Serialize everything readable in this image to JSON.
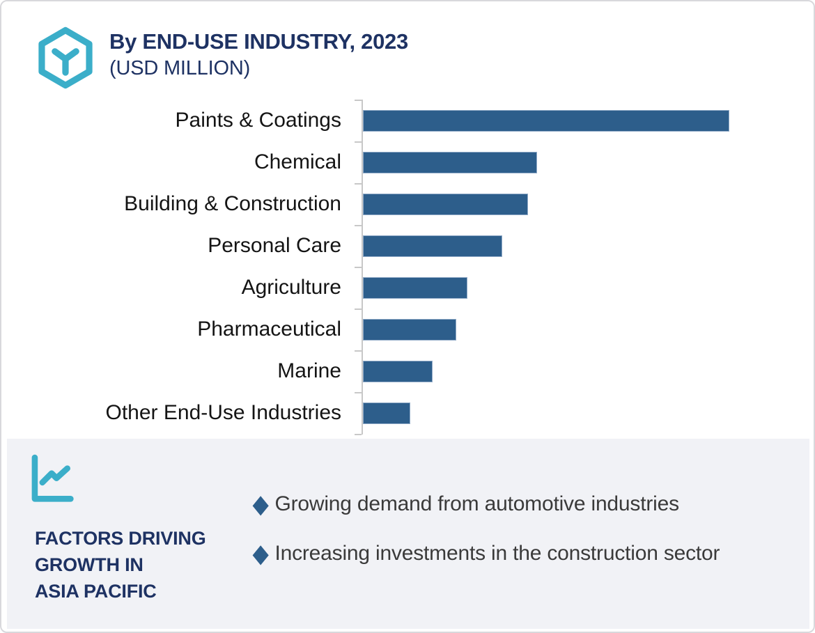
{
  "page": {
    "background": "#FFFFFF",
    "border_color": "#D8D8DC"
  },
  "header": {
    "icon": "hexagon-molecule-icon",
    "icon_color": "#3BAEC9",
    "title": "By END-USE INDUSTRY, 2023",
    "subtitle": "(USD MILLION)",
    "title_color": "#1E3263"
  },
  "chart_data": {
    "type": "bar",
    "orientation": "horizontal",
    "title": "By END-USE INDUSTRY, 2023",
    "units": "USD MILLION",
    "categories": [
      "Paints & Coatings",
      "Chemical",
      "Building & Construction",
      "Personal Care",
      "Agriculture",
      "Pharmaceutical",
      "Marine",
      "Other End-Use Industries"
    ],
    "values": [
      100,
      47.5,
      45,
      38,
      28.5,
      25.5,
      19,
      13
    ],
    "value_scale": "relative bar length, % of longest bar (no numeric axis labels shown in chart)",
    "bar_color": "#2D5E8B",
    "axis_color": "#C8C8C8",
    "grid": false,
    "legend": false
  },
  "footer": {
    "icon": "line-chart-icon",
    "icon_color": "#3BAEC9",
    "panel_bg": "#F1F2F6",
    "heading": "FACTORS DRIVING GROWTH IN ASIA PACIFIC",
    "heading_lines": [
      "FACTORS DRIVING",
      "GROWTH IN",
      "ASIA PACIFIC"
    ],
    "heading_color": "#1E3263",
    "bullet_icon": "diamond-bullet-icon",
    "bullet_color": "#2D5E8B",
    "bullets": [
      "Growing demand from automotive industries",
      "Increasing investments in the construction sector"
    ]
  }
}
